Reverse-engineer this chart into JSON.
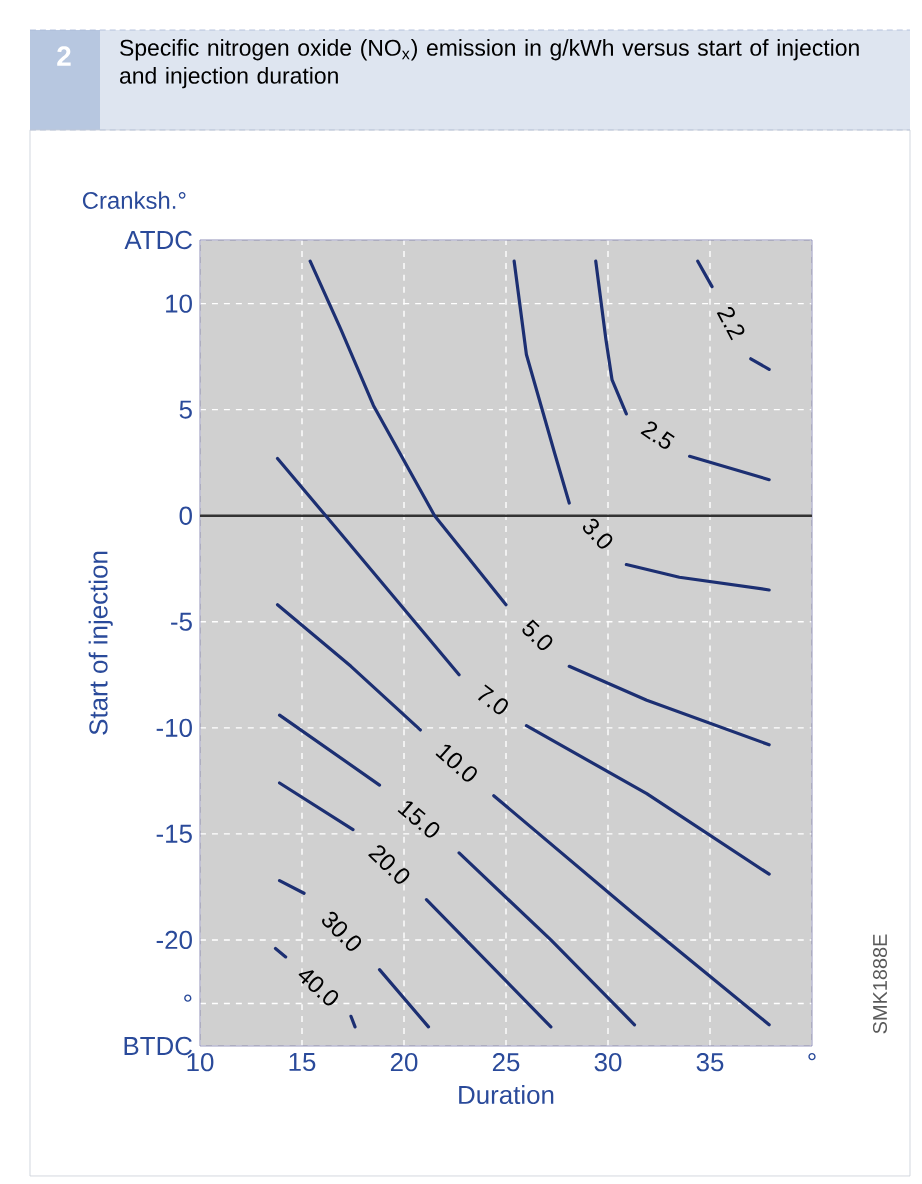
{
  "chart_data": {
    "type": "line",
    "title": "Specific nitrogen oxide (NO$_{x}$) emission in g/kWh versus start of injection and injection duration",
    "xlabel": "Duration",
    "ylabel": "Start of injection",
    "annotations": [
      "2",
      "Cranksh.°",
      "SMK1888E"
    ],
    "xlim": [
      10,
      40
    ],
    "ylim": [
      -25,
      13
    ],
    "xticks": [
      10,
      15,
      20,
      25,
      30,
      35,
      {
        "value": 40,
        "label": "°"
      }
    ],
    "yticks": [
      {
        "value": -25,
        "label": "BTDC"
      },
      {
        "value": -23,
        "label": "°"
      },
      -20,
      -15,
      -10,
      -5,
      0,
      5,
      10,
      {
        "value": 13,
        "label": "ATDC"
      }
    ],
    "grid": true,
    "ref_lines": [
      {
        "axis": "y",
        "value": 0,
        "color": "#333333"
      }
    ],
    "series": [
      {
        "name": "2.2",
        "color": "#1c2f72",
        "x": [
          34.4,
          35.1,
          null,
          37.0,
          37.9
        ],
        "values": [
          12.0,
          10.8,
          null,
          7.4,
          6.9
        ]
      },
      {
        "name": "2.5",
        "color": "#1c2f72",
        "x": [
          29.4,
          29.9,
          30.2,
          30.9,
          null,
          34.0,
          37.9
        ],
        "values": [
          12.0,
          8.3,
          6.4,
          4.8,
          null,
          2.8,
          1.7
        ]
      },
      {
        "name": "3.0",
        "color": "#1c2f72",
        "x": [
          25.4,
          26.0,
          27.4,
          28.1,
          null,
          30.9,
          33.5,
          37.9
        ],
        "values": [
          12.0,
          7.6,
          2.9,
          0.6,
          null,
          -2.3,
          -2.9,
          -3.5
        ]
      },
      {
        "name": "5.0",
        "color": "#1c2f72",
        "x": [
          15.4,
          16.9,
          18.5,
          21.5,
          25.0,
          null,
          28.1,
          31.9,
          37.9
        ],
        "values": [
          12.0,
          8.8,
          5.2,
          0.0,
          -4.2,
          null,
          -7.1,
          -8.7,
          -10.8
        ]
      },
      {
        "name": "7.0",
        "color": "#1c2f72",
        "x": [
          13.8,
          16.6,
          22.7,
          null,
          26.0,
          31.9,
          37.9
        ],
        "values": [
          2.7,
          -0.5,
          -7.5,
          null,
          -9.9,
          -13.1,
          -16.9
        ]
      },
      {
        "name": "10.0",
        "color": "#1c2f72",
        "x": [
          13.8,
          17.4,
          20.8,
          null,
          24.4,
          31.3,
          37.9
        ],
        "values": [
          -4.2,
          -7.1,
          -10.1,
          null,
          -13.2,
          -18.8,
          -24.0
        ]
      },
      {
        "name": "15.0",
        "color": "#1c2f72",
        "x": [
          13.9,
          18.8,
          null,
          22.7,
          27.2,
          31.3
        ],
        "values": [
          -9.4,
          -12.7,
          null,
          -15.9,
          -20.0,
          -24.0
        ]
      },
      {
        "name": "20.0",
        "color": "#1c2f72",
        "x": [
          13.9,
          17.5,
          null,
          21.1,
          27.2
        ],
        "values": [
          -12.6,
          -14.8,
          null,
          -18.1,
          -24.1
        ]
      },
      {
        "name": "30.0",
        "color": "#1c2f72",
        "x": [
          13.9,
          15.1,
          null,
          18.8,
          21.2
        ],
        "values": [
          -17.2,
          -17.8,
          null,
          -21.4,
          -24.1
        ]
      },
      {
        "name": "40.0",
        "color": "#1c2f72",
        "x": [
          13.7,
          14.2,
          null,
          17.4,
          17.6
        ],
        "values": [
          -20.4,
          -20.8,
          null,
          -23.6,
          -24.1
        ]
      }
    ]
  }
}
